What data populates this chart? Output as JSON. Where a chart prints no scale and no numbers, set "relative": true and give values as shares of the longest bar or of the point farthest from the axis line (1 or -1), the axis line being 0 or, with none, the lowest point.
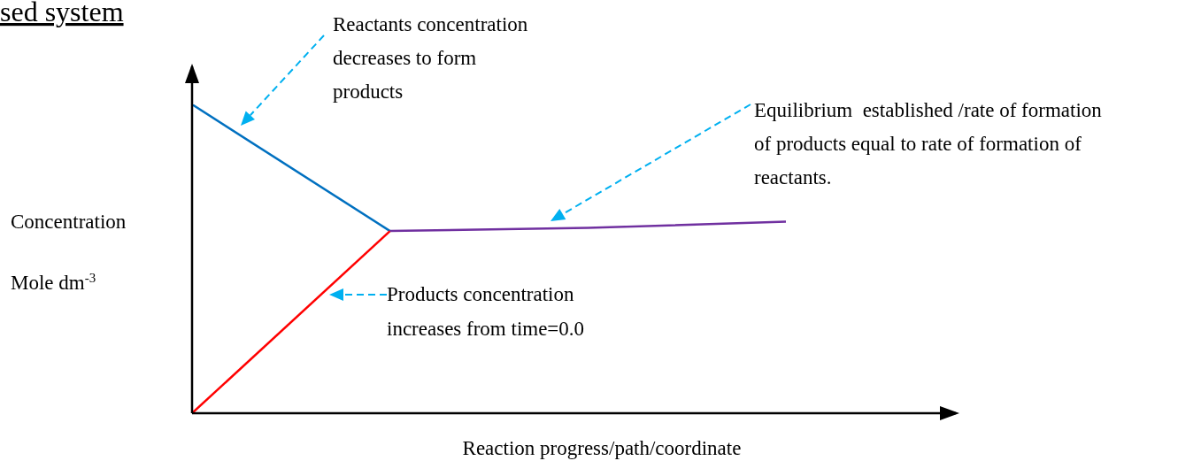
{
  "chart_data": {
    "type": "line",
    "title": "sed system",
    "xlabel": "Reaction progress/path/coordinate",
    "ylabel": "Concentration\nMole dm$^{-3}$",
    "relative": true,
    "categories": [
      null,
      null,
      null,
      null
    ],
    "series": [
      {
        "color": "#0070c0",
        "values": [
          1,
          0.59,
          null,
          null
        ]
      },
      {
        "color": "#ff0000",
        "values": [
          0,
          0.59,
          null,
          null
        ]
      },
      {
        "color": "#7030a0",
        "values": [
          null,
          0.59,
          0.6,
          0.62
        ]
      }
    ],
    "annotations": [
      "Reactants concentration\ndecreases to form\nproducts",
      "Equilibrium  established /rate of formation\nof products equal to rate of formation of\nreactants.",
      "Products concentration\nincreases from time=0.0"
    ],
    "grid": false,
    "marker": "none",
    "line_style": "solid"
  }
}
